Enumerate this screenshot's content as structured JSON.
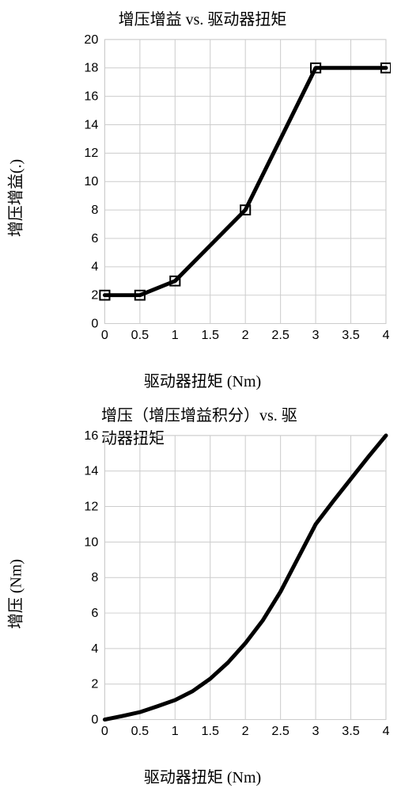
{
  "charts": [
    {
      "title": "增压增益 vs. 驱动器扭矩",
      "xlabel": "驱动器扭矩 (Nm)",
      "ylabel": "增压增益(.)",
      "type": "line",
      "xlim": [
        0,
        4
      ],
      "ylim": [
        0,
        20
      ],
      "ytick_step": 2,
      "xtick_step": 0.5,
      "grid_color": "#cccccc",
      "background_color": "#ffffff",
      "line_color": "#000000",
      "line_width": 5,
      "marker": {
        "shape": "square",
        "size": 12,
        "stroke": "#000000",
        "fill": "none"
      },
      "title_fontsize": 20,
      "label_fontsize": 20,
      "tick_fontsize": 16,
      "data": [
        {
          "x": 0,
          "y": 2
        },
        {
          "x": 0.5,
          "y": 2
        },
        {
          "x": 1,
          "y": 3
        },
        {
          "x": 2,
          "y": 8
        },
        {
          "x": 3,
          "y": 18
        },
        {
          "x": 4,
          "y": 18
        }
      ]
    },
    {
      "title": "增压（增压增益积分）vs. 驱动器扭矩",
      "xlabel": "驱动器扭矩 (Nm)",
      "ylabel": "增压 (Nm)",
      "type": "line",
      "xlim": [
        0,
        4
      ],
      "ylim": [
        0,
        16
      ],
      "ytick_step": 2,
      "xtick_step": 0.5,
      "grid_color": "#cccccc",
      "background_color": "#ffffff",
      "line_color": "#000000",
      "line_width": 5,
      "marker": null,
      "title_fontsize": 20,
      "label_fontsize": 20,
      "tick_fontsize": 16,
      "data": [
        {
          "x": 0.0,
          "y": 0.0
        },
        {
          "x": 0.25,
          "y": 0.2
        },
        {
          "x": 0.5,
          "y": 0.42
        },
        {
          "x": 0.75,
          "y": 0.75
        },
        {
          "x": 1.0,
          "y": 1.1
        },
        {
          "x": 1.25,
          "y": 1.6
        },
        {
          "x": 1.5,
          "y": 2.3
        },
        {
          "x": 1.75,
          "y": 3.2
        },
        {
          "x": 2.0,
          "y": 4.3
        },
        {
          "x": 2.25,
          "y": 5.6
        },
        {
          "x": 2.5,
          "y": 7.2
        },
        {
          "x": 2.75,
          "y": 9.1
        },
        {
          "x": 3.0,
          "y": 11.0
        },
        {
          "x": 3.25,
          "y": 12.3
        },
        {
          "x": 3.5,
          "y": 13.55
        },
        {
          "x": 3.75,
          "y": 14.8
        },
        {
          "x": 4.0,
          "y": 16.0
        }
      ]
    }
  ]
}
